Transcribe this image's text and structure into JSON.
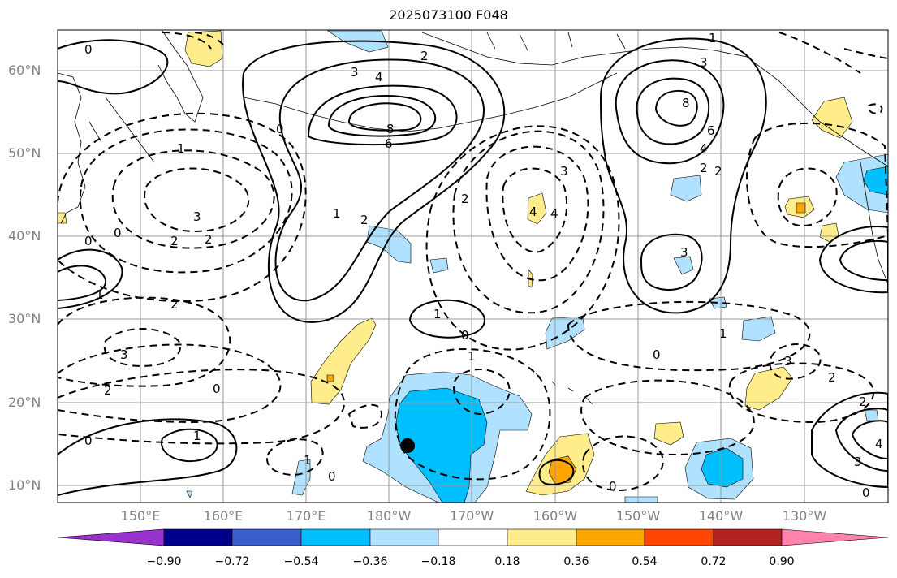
{
  "title": "2025073100 F048",
  "lat_labels": [
    "60°N",
    "50°N",
    "40°N",
    "30°N",
    "20°N",
    "10°N"
  ],
  "lon_labels": [
    "150°E",
    "160°E",
    "170°E",
    "180°W",
    "170°W",
    "160°W",
    "150°W",
    "140°W",
    "130°W"
  ],
  "colorbar": {
    "labels": [
      "−0.90",
      "−0.72",
      "−0.54",
      "−0.36",
      "−0.18",
      "0.18",
      "0.36",
      "0.54",
      "0.72",
      "0.90"
    ],
    "colors": [
      "#9932cc",
      "#00008b",
      "#3a5fcd",
      "#00bfff",
      "#b0e2ff",
      "#ffffff",
      "#ffec8b",
      "#ffa500",
      "#ff4500",
      "#b22222",
      "#ff82ab"
    ]
  },
  "contour_labels": [
    {
      "text": "0"
    },
    {
      "text": "2"
    },
    {
      "text": "3"
    },
    {
      "text": "4"
    },
    {
      "text": "8"
    },
    {
      "text": "6"
    },
    {
      "text": "1"
    },
    {
      "text": "3"
    },
    {
      "text": "8"
    },
    {
      "text": "6"
    },
    {
      "text": "4"
    },
    {
      "text": "2"
    },
    {
      "text": "2"
    },
    {
      "text": "3"
    },
    {
      "text": "1"
    },
    {
      "text": "0"
    },
    {
      "text": "2"
    },
    {
      "text": "2"
    },
    {
      "text": "3"
    },
    {
      "text": "2"
    },
    {
      "text": "2"
    },
    {
      "text": "1"
    },
    {
      "text": "3"
    },
    {
      "text": "4"
    },
    {
      "text": "0"
    },
    {
      "text": "0"
    },
    {
      "text": "1"
    },
    {
      "text": "2"
    },
    {
      "text": "3"
    },
    {
      "text": "4"
    },
    {
      "text": "1"
    },
    {
      "text": "0"
    },
    {
      "text": "1"
    },
    {
      "text": "2"
    },
    {
      "text": "0"
    },
    {
      "text": "3"
    },
    {
      "text": "2"
    },
    {
      "text": "1"
    },
    {
      "text": "0"
    },
    {
      "text": "1"
    },
    {
      "text": "0"
    },
    {
      "text": "0"
    },
    {
      "text": "0"
    },
    {
      "text": "1"
    },
    {
      "text": "0"
    },
    {
      "text": "3"
    },
    {
      "text": "4"
    },
    {
      "text": "2"
    }
  ],
  "marker": {
    "name": "center-point",
    "color": "#000000"
  }
}
